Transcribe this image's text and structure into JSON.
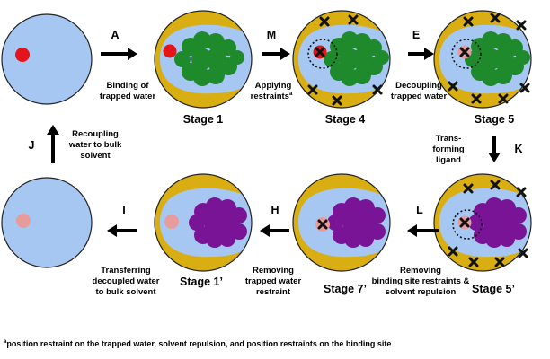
{
  "colors": {
    "solvent": "#a7c7f3",
    "protein": "#d8ae12",
    "ligand_green": "#1f8a2b",
    "ligand_purple": "#7a1497",
    "water_coupled": "#e4141b",
    "water_decoupled": "#e79b9b"
  },
  "stages": [
    {
      "id": "s0",
      "label": ""
    },
    {
      "id": "s1",
      "label": "Stage 1"
    },
    {
      "id": "s4",
      "label": "Stage 4"
    },
    {
      "id": "s5",
      "label": "Stage 5"
    },
    {
      "id": "s0p",
      "label": ""
    },
    {
      "id": "s1p",
      "label": "Stage 1’"
    },
    {
      "id": "s7p",
      "label": "Stage 7’"
    },
    {
      "id": "s5p",
      "label": "Stage 5’"
    }
  ],
  "steps": [
    {
      "letter": "A",
      "lines": [
        "Binding of",
        "trapped water"
      ]
    },
    {
      "letter": "M",
      "lines": [
        "Applying",
        "restraints"
      ],
      "note_mark": "a"
    },
    {
      "letter": "E",
      "lines": [
        "Decoupling",
        "trapped water"
      ]
    },
    {
      "letter": "K",
      "lines": [
        "Trans-",
        "forming",
        "ligand"
      ]
    },
    {
      "letter": "L",
      "lines": [
        "Removing",
        "binding site restraints &",
        "solvent repulsion"
      ]
    },
    {
      "letter": "H",
      "lines": [
        "Removing",
        "trapped water",
        "restraint"
      ]
    },
    {
      "letter": "I",
      "lines": [
        "Transferring",
        "decoupled water",
        "to bulk solvent"
      ]
    },
    {
      "letter": "J",
      "lines": [
        "Recoupling",
        "water to bulk",
        "solvent"
      ]
    }
  ],
  "footnote": {
    "mark": "a",
    "text": "position restraint on the trapped water, solvent repulsion, and position restraints on the binding site"
  },
  "icons": {
    "restraint": "cross-icon",
    "arrow": "arrow-icon"
  }
}
